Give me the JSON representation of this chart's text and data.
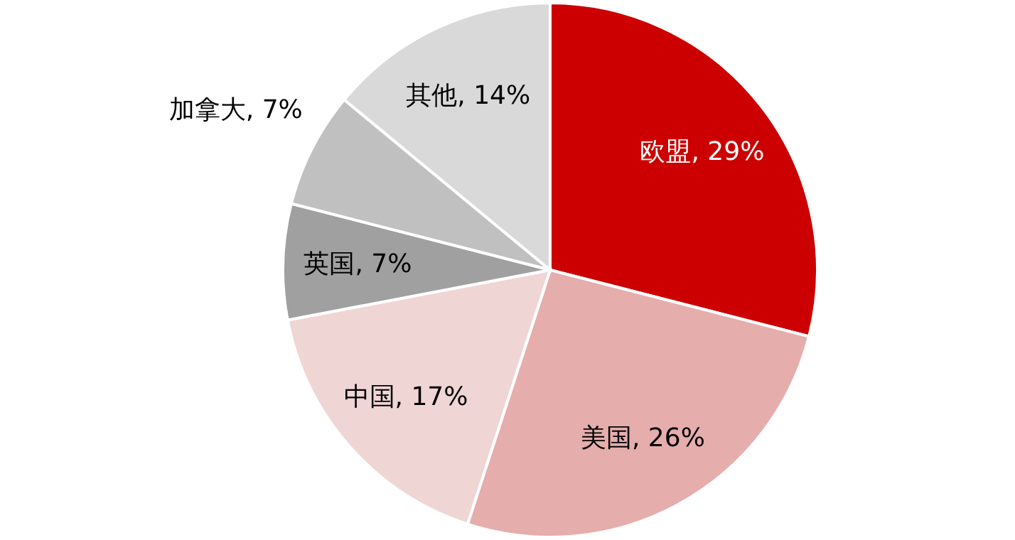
{
  "chart_data": {
    "type": "pie",
    "categories": [
      "欧盟",
      "美国",
      "中国",
      "英国",
      "加拿大",
      "其他"
    ],
    "values": [
      29,
      26,
      17,
      7,
      7,
      14
    ],
    "value_labels": [
      "29%",
      "26%",
      "17%",
      "7%",
      "7%",
      "14%"
    ],
    "colors": [
      "#cc0000",
      "#e6adad",
      "#f0d5d5",
      "#a0a0a0",
      "#c0c0c0",
      "#d9d9d9"
    ]
  }
}
